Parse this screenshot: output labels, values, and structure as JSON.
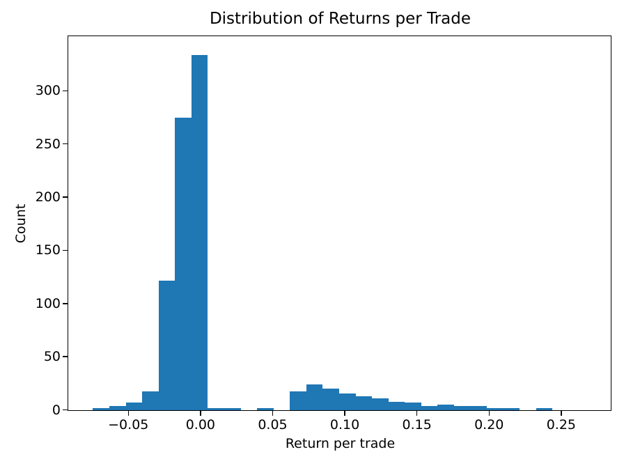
{
  "chart_data": {
    "type": "bar",
    "subtype": "histogram",
    "title": "Distribution of Returns per Trade",
    "xlabel": "Return per trade",
    "ylabel": "Count",
    "bar_color": "#1f77b4",
    "background_color": "#ffffff",
    "axis_color": "#000000",
    "grid": false,
    "legend": "none",
    "bins": {
      "start": -0.0743,
      "width": 0.011377,
      "counts": [
        2,
        4,
        7,
        18,
        122,
        275,
        334,
        2,
        2,
        0,
        2,
        0,
        18,
        24,
        20,
        16,
        13,
        11,
        8,
        7,
        4,
        5,
        4,
        4,
        2,
        2,
        0,
        2,
        0,
        0
      ]
    },
    "x_tick_values": [
      -0.05,
      0.0,
      0.05,
      0.1,
      0.15,
      0.2,
      0.25
    ],
    "x_tick_labels": [
      "−0.05",
      "0.00",
      "0.05",
      "0.10",
      "0.15",
      "0.20",
      "0.25"
    ],
    "y_tick_values": [
      0,
      50,
      100,
      150,
      200,
      250,
      300
    ],
    "y_tick_labels": [
      "0",
      "50",
      "100",
      "150",
      "200",
      "250",
      "300"
    ],
    "xlim": [
      -0.0914,
      0.2841
    ],
    "ylim": [
      0,
      351
    ]
  }
}
